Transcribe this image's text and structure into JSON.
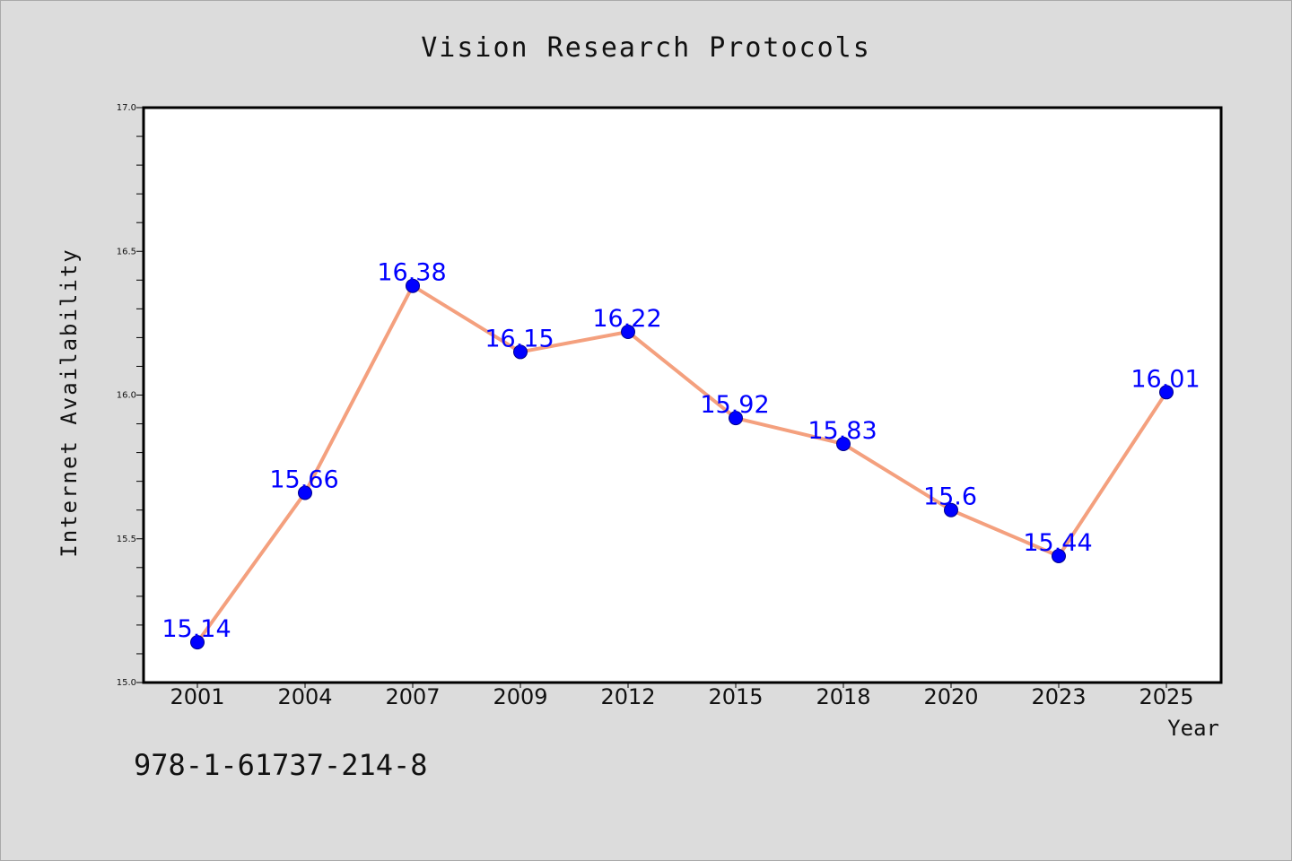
{
  "chart_data": {
    "type": "line",
    "title": "Vision Research Protocols",
    "xlabel": "Year",
    "ylabel": "Internet Availability",
    "categories": [
      "2001",
      "2004",
      "2007",
      "2009",
      "2012",
      "2015",
      "2018",
      "2020",
      "2023",
      "2025"
    ],
    "values": [
      15.14,
      15.66,
      16.38,
      16.15,
      16.22,
      15.92,
      15.83,
      15.6,
      15.44,
      16.01
    ],
    "data_labels": [
      "15.14",
      "15.66",
      "16.38",
      "16.15",
      "16.22",
      "15.92",
      "15.83",
      "15.6",
      "15.44",
      "16.01"
    ],
    "ylim": [
      15.0,
      17.0
    ],
    "yticks": [
      "15.0",
      "15.5",
      "16.0",
      "16.5",
      "17.0"
    ],
    "ytick_values": [
      15.0,
      15.5,
      16.0,
      16.5,
      17.0
    ],
    "grid": false,
    "line_color": "#f4a07e",
    "marker_color": "#0000ff",
    "label_color": "#0000ff",
    "background_color": "#dcdcdc",
    "plot_background": "#ffffff"
  },
  "footer": {
    "isbn": "978-1-61737-214-8"
  }
}
